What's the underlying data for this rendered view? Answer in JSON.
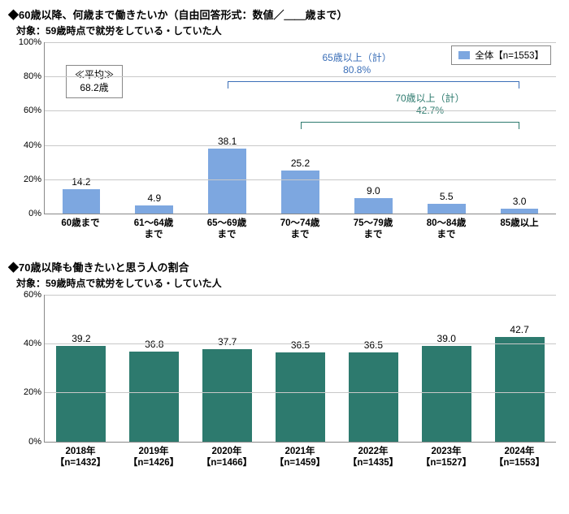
{
  "chart1": {
    "title": "◆60歳以降、何歳まで働きたいか（自由回答形式：数値／＿＿歳まで）",
    "subtitle": "対象：59歳時点で就労をしている・していた人",
    "ylim": [
      0,
      100
    ],
    "ytick_step": 20,
    "bar_color": "#7da7e0",
    "categories": [
      "60歳まで",
      "61～64歳\nまで",
      "65～69歳\nまで",
      "70～74歳\nまで",
      "75～79歳\nまで",
      "80～84歳\nまで",
      "85歳以上"
    ],
    "values": [
      14.2,
      4.9,
      38.1,
      25.2,
      9.0,
      5.5,
      3.0
    ],
    "avg_label": "≪平均≫",
    "avg_value": "68.2歳",
    "legend_label": "全体【n=1553】",
    "annot65_label": "65歳以上（計）",
    "annot65_value": "80.8%",
    "annot65_color": "#3b6fb8",
    "annot70_label": "70歳以上（計）",
    "annot70_value": "42.7%",
    "annot70_color": "#2d7a6e"
  },
  "chart2": {
    "title": "◆70歳以降も働きたいと思う人の割合",
    "subtitle": "対象：59歳時点で就労をしている・していた人",
    "ylim": [
      0,
      60
    ],
    "ytick_step": 20,
    "bar_color": "#2d7a6e",
    "categories": [
      "2018年\n【n=1432】",
      "2019年\n【n=1426】",
      "2020年\n【n=1466】",
      "2021年\n【n=1459】",
      "2022年\n【n=1435】",
      "2023年\n【n=1527】",
      "2024年\n【n=1553】"
    ],
    "values": [
      39.2,
      36.8,
      37.7,
      36.5,
      36.5,
      39.0,
      42.7
    ]
  }
}
